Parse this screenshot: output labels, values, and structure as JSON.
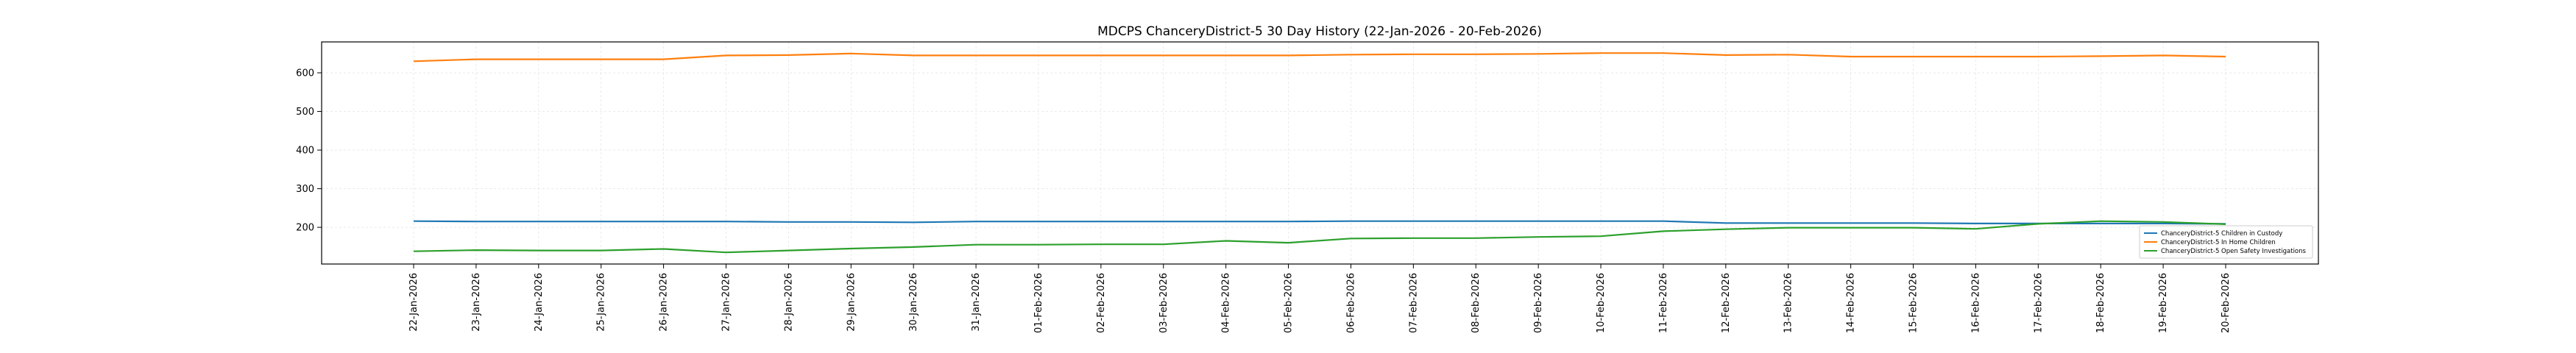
{
  "chart_data": {
    "type": "line",
    "title": "MDCPS ChanceryDistrict-5 30 Day History (22-Jan-2026 - 20-Feb-2026)",
    "xlabel": "",
    "ylabel": "",
    "ylim": [
      105,
      680
    ],
    "yticks": [
      200,
      300,
      400,
      500,
      600
    ],
    "grid": true,
    "legend_position": "lower-right",
    "categories": [
      "22-Jan-2026",
      "23-Jan-2026",
      "24-Jan-2026",
      "25-Jan-2026",
      "26-Jan-2026",
      "27-Jan-2026",
      "28-Jan-2026",
      "29-Jan-2026",
      "30-Jan-2026",
      "31-Jan-2026",
      "01-Feb-2026",
      "02-Feb-2026",
      "03-Feb-2026",
      "04-Feb-2026",
      "05-Feb-2026",
      "06-Feb-2026",
      "07-Feb-2026",
      "08-Feb-2026",
      "09-Feb-2026",
      "10-Feb-2026",
      "11-Feb-2026",
      "12-Feb-2026",
      "13-Feb-2026",
      "14-Feb-2026",
      "15-Feb-2026",
      "16-Feb-2026",
      "17-Feb-2026",
      "18-Feb-2026",
      "19-Feb-2026",
      "20-Feb-2026"
    ],
    "series": [
      {
        "name": "ChanceryDistrict-5 Children in Custody",
        "color": "#1f77b4",
        "values": [
          216,
          215,
          215,
          215,
          215,
          215,
          214,
          214,
          213,
          215,
          215,
          215,
          215,
          215,
          215,
          216,
          216,
          216,
          216,
          216,
          216,
          211,
          211,
          211,
          211,
          210,
          210,
          210,
          210,
          209
        ]
      },
      {
        "name": "ChanceryDistrict-5 In Home Children",
        "color": "#ff7f0e",
        "values": [
          630,
          635,
          635,
          635,
          635,
          645,
          646,
          650,
          645,
          645,
          645,
          645,
          645,
          645,
          645,
          647,
          648,
          648,
          649,
          651,
          651,
          646,
          647,
          642,
          642,
          642,
          642,
          643,
          645,
          642
        ]
      },
      {
        "name": "ChanceryDistrict-5 Open Safety Investigations",
        "color": "#2ca02c",
        "values": [
          138,
          141,
          140,
          140,
          144,
          135,
          140,
          145,
          149,
          155,
          155,
          156,
          156,
          165,
          160,
          171,
          172,
          172,
          175,
          177,
          190,
          195,
          199,
          199,
          199,
          196,
          209,
          216,
          214,
          208
        ]
      }
    ]
  }
}
